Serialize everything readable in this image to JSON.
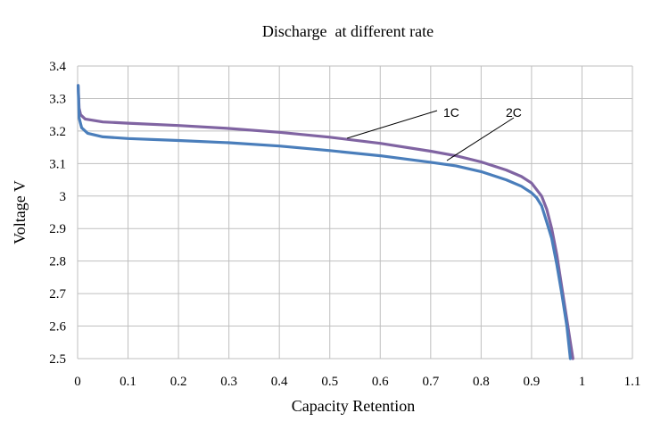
{
  "chart_data": {
    "type": "line",
    "title": "Discharge  at different rate",
    "xlabel": "Capacity Retention",
    "ylabel": "Voltage V",
    "xlim": [
      0,
      1.1
    ],
    "ylim": [
      2.5,
      3.4
    ],
    "x_ticks": [
      "0",
      "0.1",
      "0.2",
      "0.3",
      "0.4",
      "0.5",
      "0.6",
      "0.7",
      "0.8",
      "0.9",
      "1",
      "1.1"
    ],
    "y_ticks": [
      "2.5",
      "2.6",
      "2.7",
      "2.8",
      "2.9",
      "3",
      "3.1",
      "3.2",
      "3.3",
      "3.4"
    ],
    "grid": true,
    "series": [
      {
        "name": "1C",
        "color": "#8064a2",
        "points": [
          [
            0.001,
            3.34
          ],
          [
            0.003,
            3.27
          ],
          [
            0.006,
            3.25
          ],
          [
            0.015,
            3.237
          ],
          [
            0.05,
            3.228
          ],
          [
            0.1,
            3.224
          ],
          [
            0.2,
            3.217
          ],
          [
            0.3,
            3.208
          ],
          [
            0.4,
            3.196
          ],
          [
            0.5,
            3.181
          ],
          [
            0.6,
            3.162
          ],
          [
            0.7,
            3.138
          ],
          [
            0.75,
            3.124
          ],
          [
            0.8,
            3.105
          ],
          [
            0.85,
            3.08
          ],
          [
            0.88,
            3.06
          ],
          [
            0.9,
            3.04
          ],
          [
            0.92,
            3.0
          ],
          [
            0.93,
            2.96
          ],
          [
            0.94,
            2.9
          ],
          [
            0.95,
            2.82
          ],
          [
            0.96,
            2.72
          ],
          [
            0.97,
            2.62
          ],
          [
            0.978,
            2.54
          ],
          [
            0.982,
            2.5
          ]
        ]
      },
      {
        "name": "2C",
        "color": "#4a7ebb",
        "points": [
          [
            0.001,
            3.34
          ],
          [
            0.003,
            3.24
          ],
          [
            0.008,
            3.21
          ],
          [
            0.02,
            3.193
          ],
          [
            0.05,
            3.182
          ],
          [
            0.1,
            3.177
          ],
          [
            0.2,
            3.171
          ],
          [
            0.3,
            3.164
          ],
          [
            0.4,
            3.154
          ],
          [
            0.5,
            3.14
          ],
          [
            0.6,
            3.124
          ],
          [
            0.7,
            3.104
          ],
          [
            0.75,
            3.093
          ],
          [
            0.8,
            3.075
          ],
          [
            0.85,
            3.05
          ],
          [
            0.88,
            3.03
          ],
          [
            0.9,
            3.01
          ],
          [
            0.91,
            2.995
          ],
          [
            0.92,
            2.97
          ],
          [
            0.93,
            2.92
          ],
          [
            0.94,
            2.87
          ],
          [
            0.95,
            2.79
          ],
          [
            0.96,
            2.7
          ],
          [
            0.97,
            2.6
          ],
          [
            0.977,
            2.5
          ]
        ]
      }
    ]
  }
}
